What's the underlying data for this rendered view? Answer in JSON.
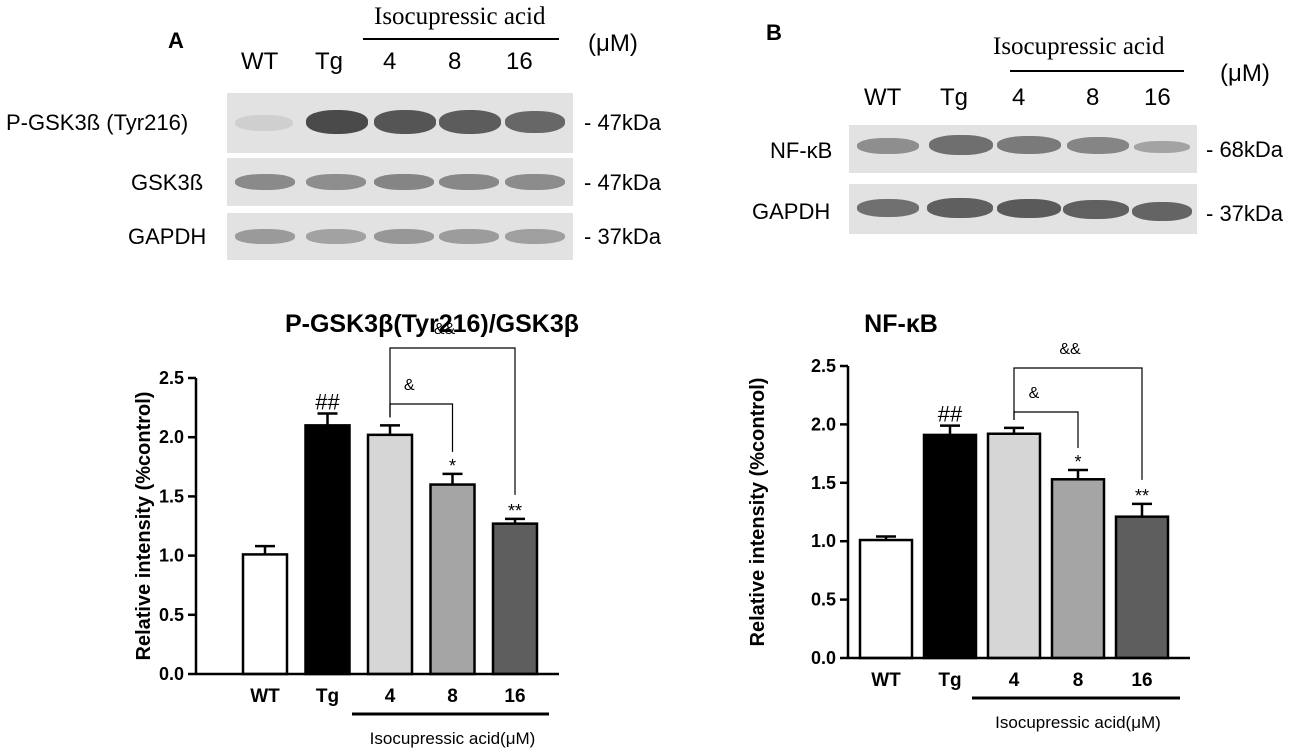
{
  "panels": [
    {
      "letter": "A",
      "lanes": [
        "WT",
        "Tg",
        "4",
        "8",
        "16"
      ],
      "group_label": "Isocupressic acid",
      "unit": "(μM)",
      "blots": [
        {
          "label": "P-GSK3ß  (Tyr216)",
          "kda": "- 47kDa"
        },
        {
          "label": "GSK3ß",
          "kda": "- 47kDa"
        },
        {
          "label": "GAPDH",
          "kda": "- 37kDa"
        }
      ]
    },
    {
      "letter": "B",
      "lanes": [
        "WT",
        "Tg",
        "4",
        "8",
        "16"
      ],
      "group_label": "Isocupressic acid",
      "unit": "(μM)",
      "blots": [
        {
          "label": "NF-κB",
          "kda": "- 68kDa"
        },
        {
          "label": "GAPDH",
          "kda": "- 37kDa"
        }
      ]
    }
  ],
  "chart_data": [
    {
      "type": "bar",
      "title": "P-GSK3β(Tyr216)/GSK3β",
      "ylabel": "Relative intensity (%control)",
      "xlabel": "Isocupressic acid(μM)",
      "categories": [
        "WT",
        "Tg",
        "4",
        "8",
        "16"
      ],
      "values": [
        1.01,
        2.1,
        2.02,
        1.6,
        1.27
      ],
      "errors": [
        0.07,
        0.1,
        0.08,
        0.09,
        0.04
      ],
      "annotations": [
        "",
        "##",
        "",
        "*",
        "**"
      ],
      "bar_colors": [
        "#ffffff",
        "#000000",
        "#d6d6d6",
        "#a5a5a5",
        "#5e5e5e"
      ],
      "ylim": [
        0,
        2.5
      ],
      "yticks": [
        "0.0",
        "0.5",
        "1.0",
        "1.5",
        "2.0",
        "2.5"
      ],
      "brackets": [
        {
          "from": 2,
          "to": 3,
          "label": "&"
        },
        {
          "from": 2,
          "to": 4,
          "label": "&&"
        }
      ]
    },
    {
      "type": "bar",
      "title": "NF-κB",
      "ylabel": "Relative intensity (%control)",
      "xlabel": "Isocupressic acid(μM)",
      "categories": [
        "WT",
        "Tg",
        "4",
        "8",
        "16"
      ],
      "values": [
        1.01,
        1.91,
        1.92,
        1.53,
        1.21
      ],
      "errors": [
        0.03,
        0.08,
        0.05,
        0.08,
        0.11
      ],
      "annotations": [
        "",
        "##",
        "",
        "*",
        "**"
      ],
      "bar_colors": [
        "#ffffff",
        "#000000",
        "#d6d6d6",
        "#a5a5a5",
        "#5e5e5e"
      ],
      "ylim": [
        0,
        2.5
      ],
      "yticks": [
        "0.0",
        "0.5",
        "1.0",
        "1.5",
        "2.0",
        "2.5"
      ],
      "brackets": [
        {
          "from": 2,
          "to": 3,
          "label": "&"
        },
        {
          "from": 2,
          "to": 4,
          "label": "&&"
        }
      ]
    }
  ]
}
